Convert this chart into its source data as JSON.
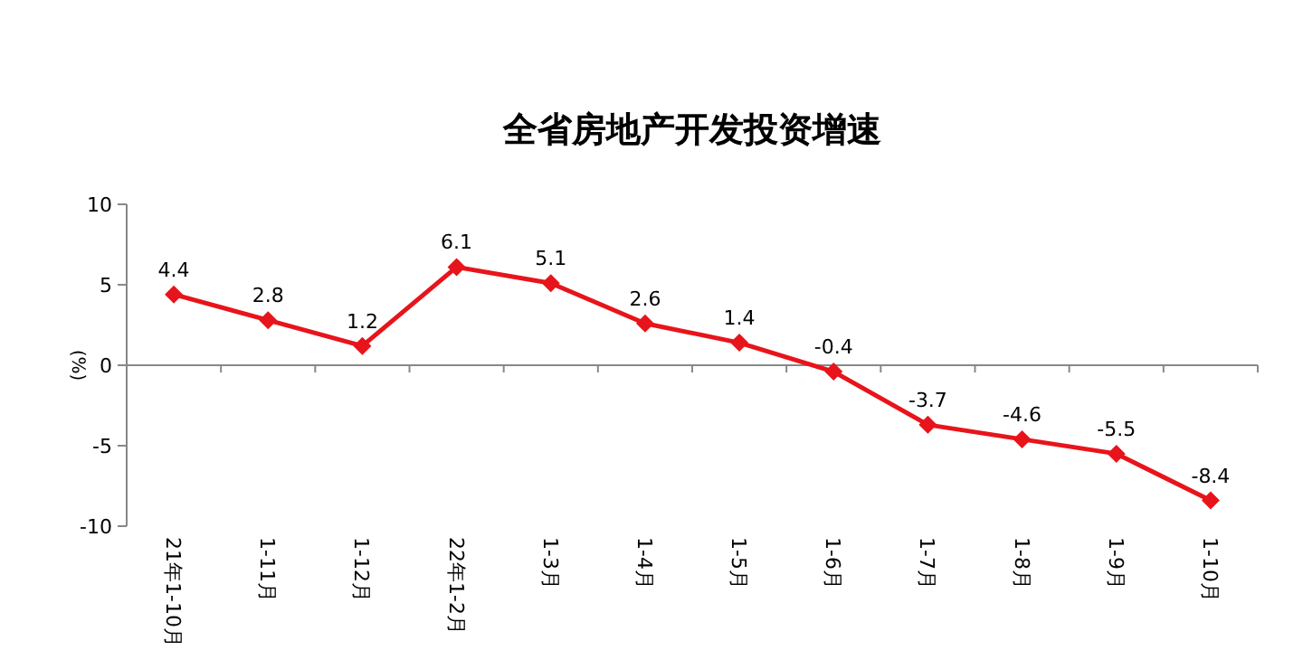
{
  "chart_data": {
    "type": "line",
    "title": "全省房地产开发投资增速",
    "ylabel": "(%)",
    "categories": [
      "21年1-10月",
      "1-11月",
      "1-12月",
      "22年1-2月",
      "1-3月",
      "1-4月",
      "1-5月",
      "1-6月",
      "1-7月",
      "1-8月",
      "1-9月",
      "1-10月"
    ],
    "series": [
      {
        "color": "#e8141b",
        "values": [
          4.4,
          2.8,
          1.2,
          6.1,
          5.1,
          2.6,
          1.4,
          -0.4,
          -3.7,
          -4.6,
          -5.5,
          -8.4
        ]
      }
    ],
    "ylim": [
      -10,
      10
    ],
    "yticks": [
      -10,
      -5,
      0,
      5,
      10
    ],
    "data_labels": true,
    "marker": "diamond",
    "line_style": "solid"
  }
}
